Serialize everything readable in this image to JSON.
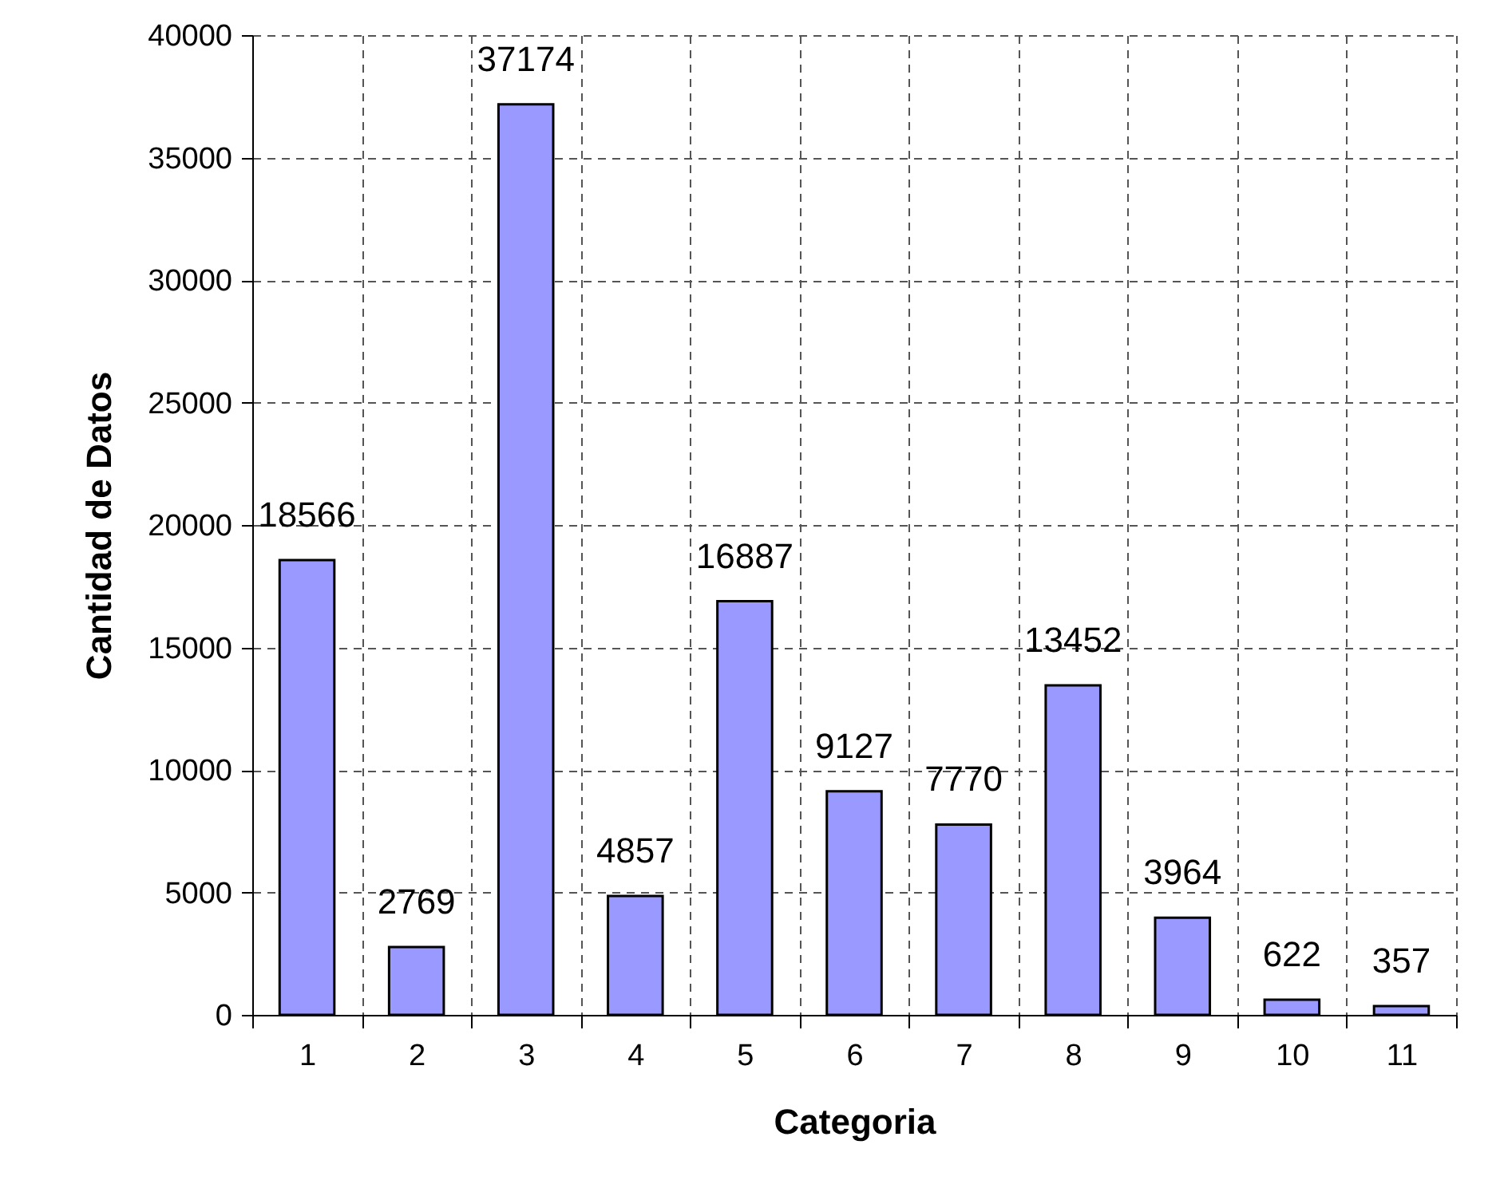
{
  "chart_data": {
    "type": "bar",
    "xlabel": "Categoria",
    "ylabel": "Cantidad de Datos",
    "categories": [
      "1",
      "2",
      "3",
      "4",
      "5",
      "6",
      "7",
      "8",
      "9",
      "10",
      "11"
    ],
    "values": [
      18566,
      2769,
      37174,
      4857,
      16887,
      9127,
      7770,
      13452,
      3964,
      622,
      357
    ],
    "color": "#9999ff",
    "ylim": [
      0,
      40000
    ],
    "yticks": [
      0,
      5000,
      10000,
      15000,
      20000,
      25000,
      30000,
      35000,
      40000
    ],
    "grid": true,
    "data_labels": true
  }
}
